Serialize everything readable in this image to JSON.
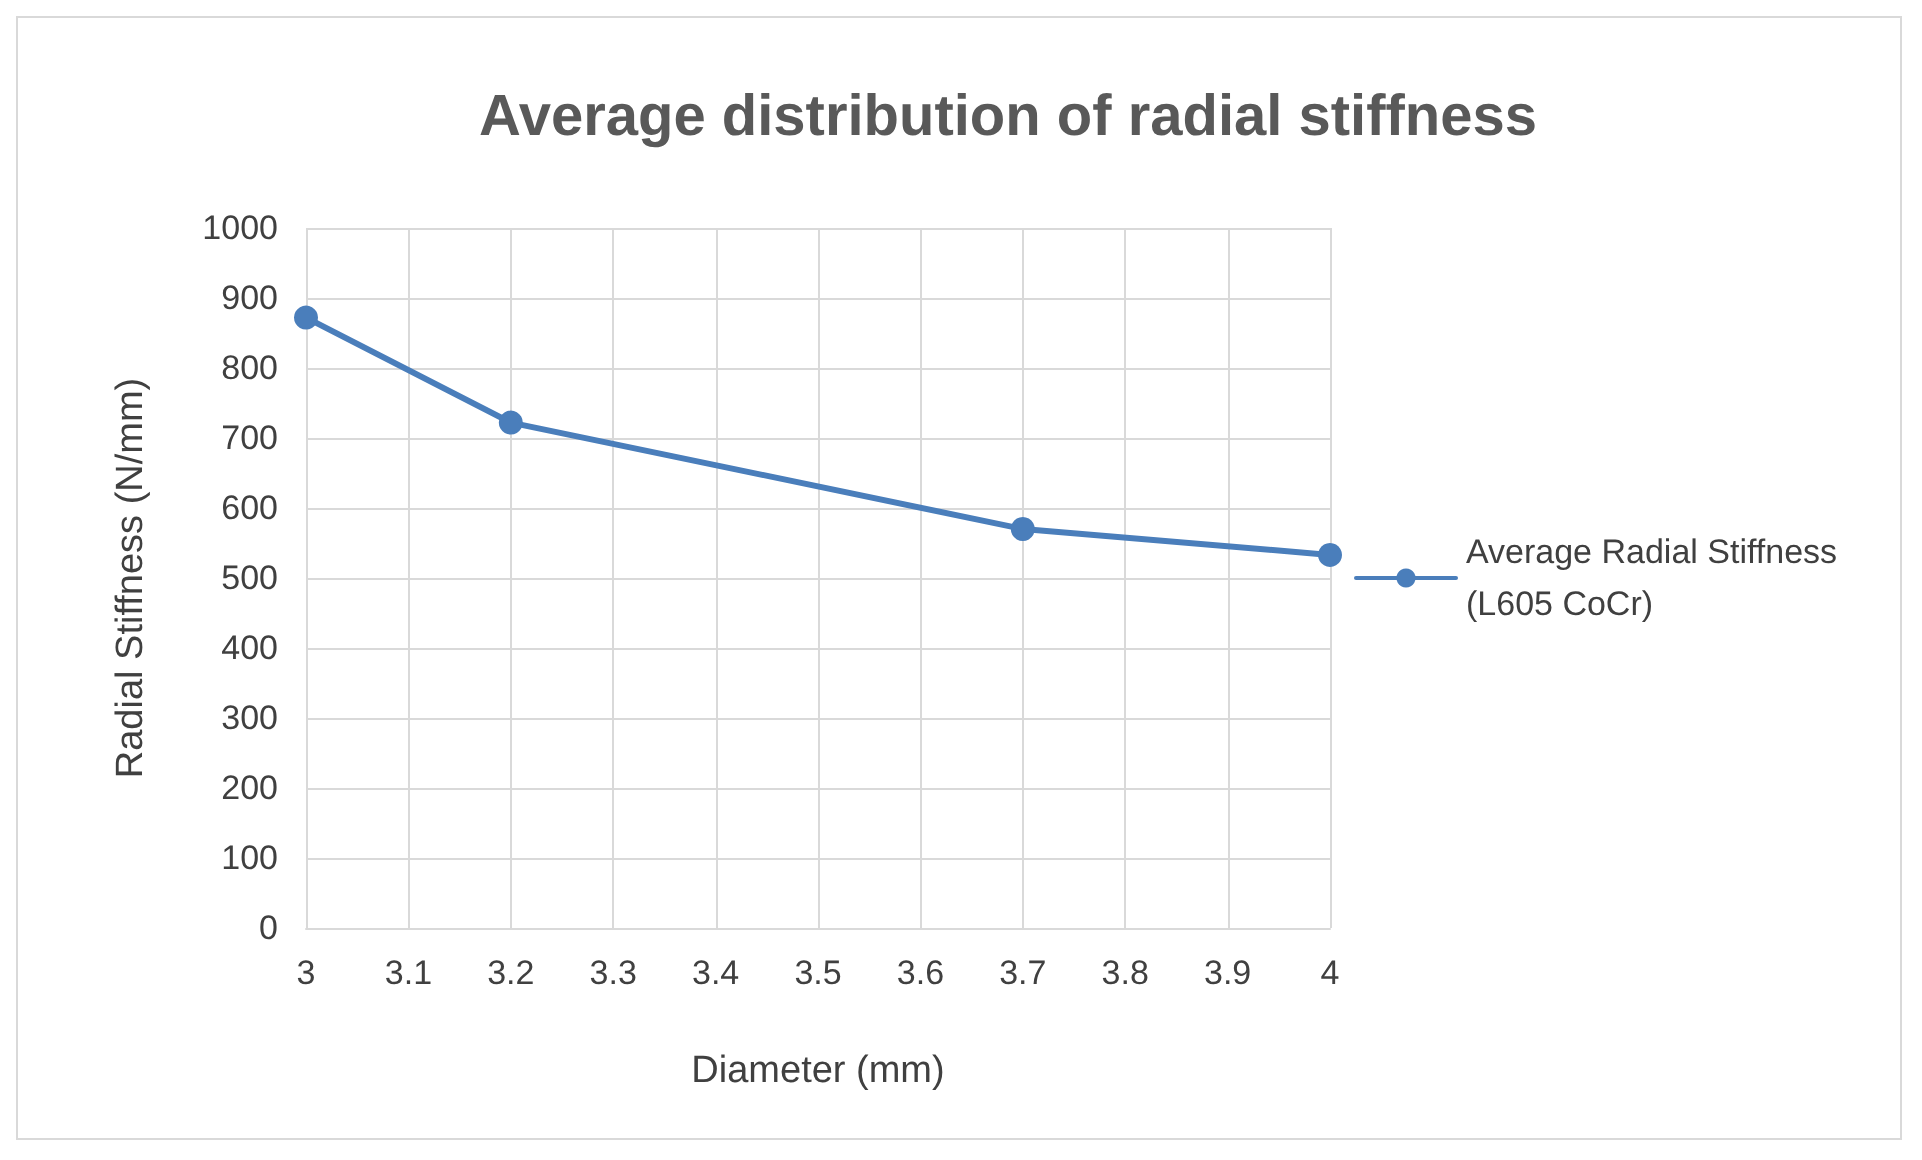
{
  "chart_data": {
    "type": "line",
    "title": "Average distribution of radial stiffness",
    "xlabel": "Diameter (mm)",
    "ylabel": "Radial Stiffness (N/mm)",
    "x": [
      3,
      3.2,
      3.7,
      4
    ],
    "series": [
      {
        "name": "Average Radial Stiffness (L605 CoCr)",
        "color": "#4a7ebb",
        "values": [
          872,
          722,
          570,
          533
        ]
      }
    ],
    "xlim": [
      3,
      4
    ],
    "xticks": [
      3,
      3.1,
      3.2,
      3.3,
      3.4,
      3.5,
      3.6,
      3.7,
      3.8,
      3.9,
      4
    ],
    "ylim": [
      0,
      1000
    ],
    "yticks": [
      0,
      100,
      200,
      300,
      400,
      500,
      600,
      700,
      800,
      900,
      1000
    ],
    "grid": true,
    "legend": "right",
    "marker": "circle",
    "line_style": "solid"
  }
}
